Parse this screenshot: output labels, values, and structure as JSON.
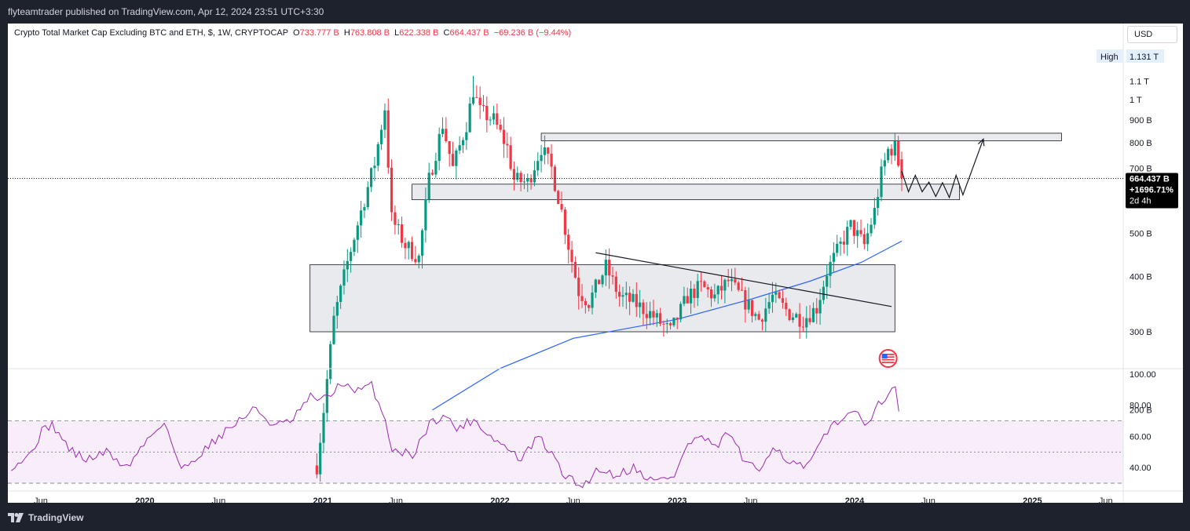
{
  "header": {
    "publisher_line": "flyteamtrader published on TradingView.com, Apr 12, 2024 23:51 UTC+3:30"
  },
  "footer": {
    "brand": "TradingView"
  },
  "legend": {
    "title": "Crypto Total Market Cap Excluding BTC and ETH, $, 1W, CRYPTOCAP",
    "o_label": "O",
    "o_value": "733.777 B",
    "h_label": "H",
    "h_value": "763.808 B",
    "l_label": "L",
    "l_value": "622.338 B",
    "c_label": "C",
    "c_value": "664.437 B",
    "change": "−69.236 B (−9.44%)"
  },
  "price_axis": {
    "currency_button": "USD",
    "high_label": "High",
    "high_value": "1.131 T",
    "current_price": "664.437 B",
    "current_change": "+1696.71%",
    "countdown": "2d 4h"
  },
  "colors": {
    "up": "#089981",
    "down": "#f23645",
    "ma": "#2962ff",
    "rsi": "#9c27b0",
    "zone_fill": "#e9eaee",
    "zone_stroke": "#131722",
    "background": "#ffffff",
    "frame": "#1e222d"
  },
  "chart_data": [
    {
      "type": "candlestick",
      "title": "Crypto Total Market Cap Excluding BTC and ETH, $, 1W, CRYPTOCAP",
      "y_scale": "log",
      "y_unit": "B",
      "y_ticks": [
        {
          "value": 200,
          "label": "200 B"
        },
        {
          "value": 300,
          "label": "300 B"
        },
        {
          "value": 400,
          "label": "400 B"
        },
        {
          "value": 500,
          "label": "500 B"
        },
        {
          "value": 700,
          "label": "700 B"
        },
        {
          "value": 800,
          "label": "800 B"
        },
        {
          "value": 900,
          "label": "900 B"
        },
        {
          "value": 1000,
          "label": "1 T"
        },
        {
          "value": 1100,
          "label": "1.1 T"
        }
      ],
      "x_ticks": [
        {
          "date": "2019-06-01",
          "label": "Jun"
        },
        {
          "date": "2020-01-01",
          "label": "2020"
        },
        {
          "date": "2020-06-01",
          "label": "Jun"
        },
        {
          "date": "2021-01-01",
          "label": "2021"
        },
        {
          "date": "2021-06-01",
          "label": "Jun"
        },
        {
          "date": "2022-01-01",
          "label": "2022"
        },
        {
          "date": "2022-06-01",
          "label": "Jun"
        },
        {
          "date": "2023-01-01",
          "label": "2023"
        },
        {
          "date": "2023-06-01",
          "label": "Jun"
        },
        {
          "date": "2024-01-01",
          "label": "2024"
        },
        {
          "date": "2024-06-01",
          "label": "Jun"
        },
        {
          "date": "2025-01-01",
          "label": "2025"
        },
        {
          "date": "2025-06-01",
          "label": "Jun"
        }
      ],
      "price_path": [
        {
          "date": "2020-12-20",
          "value": 150
        },
        {
          "date": "2021-01-03",
          "value": 200
        },
        {
          "date": "2021-01-24",
          "value": 320
        },
        {
          "date": "2021-02-21",
          "value": 430
        },
        {
          "date": "2021-03-21",
          "value": 560
        },
        {
          "date": "2021-04-18",
          "value": 720
        },
        {
          "date": "2021-05-09",
          "value": 960
        },
        {
          "date": "2021-05-23",
          "value": 540
        },
        {
          "date": "2021-06-20",
          "value": 470
        },
        {
          "date": "2021-07-18",
          "value": 440
        },
        {
          "date": "2021-08-08",
          "value": 660
        },
        {
          "date": "2021-09-05",
          "value": 880
        },
        {
          "date": "2021-09-26",
          "value": 700
        },
        {
          "date": "2021-10-24",
          "value": 880
        },
        {
          "date": "2021-11-07",
          "value": 1050
        },
        {
          "date": "2021-11-21",
          "value": 940
        },
        {
          "date": "2021-12-19",
          "value": 900
        },
        {
          "date": "2022-01-16",
          "value": 780
        },
        {
          "date": "2022-01-30",
          "value": 660
        },
        {
          "date": "2022-02-27",
          "value": 650
        },
        {
          "date": "2022-03-27",
          "value": 780
        },
        {
          "date": "2022-04-17",
          "value": 700
        },
        {
          "date": "2022-05-08",
          "value": 560
        },
        {
          "date": "2022-05-22",
          "value": 470
        },
        {
          "date": "2022-06-12",
          "value": 370
        },
        {
          "date": "2022-07-03",
          "value": 350
        },
        {
          "date": "2022-08-07",
          "value": 420
        },
        {
          "date": "2022-09-04",
          "value": 360
        },
        {
          "date": "2022-10-02",
          "value": 350
        },
        {
          "date": "2022-11-06",
          "value": 330
        },
        {
          "date": "2022-12-18",
          "value": 300
        },
        {
          "date": "2023-01-22",
          "value": 360
        },
        {
          "date": "2023-02-19",
          "value": 380
        },
        {
          "date": "2023-03-19",
          "value": 360
        },
        {
          "date": "2023-04-16",
          "value": 390
        },
        {
          "date": "2023-05-21",
          "value": 350
        },
        {
          "date": "2023-06-18",
          "value": 320
        },
        {
          "date": "2023-07-16",
          "value": 360
        },
        {
          "date": "2023-08-20",
          "value": 330
        },
        {
          "date": "2023-09-17",
          "value": 320
        },
        {
          "date": "2023-10-15",
          "value": 340
        },
        {
          "date": "2023-11-05",
          "value": 410
        },
        {
          "date": "2023-12-03",
          "value": 470
        },
        {
          "date": "2023-12-24",
          "value": 520
        },
        {
          "date": "2024-01-21",
          "value": 470
        },
        {
          "date": "2024-02-11",
          "value": 560
        },
        {
          "date": "2024-02-25",
          "value": 680
        },
        {
          "date": "2024-03-10",
          "value": 770
        },
        {
          "date": "2024-03-24",
          "value": 780
        },
        {
          "date": "2024-04-07",
          "value": 664
        }
      ],
      "moving_average": [
        {
          "date": "2021-08-15",
          "value": 200
        },
        {
          "date": "2022-01-01",
          "value": 248
        },
        {
          "date": "2022-06-01",
          "value": 290
        },
        {
          "date": "2023-01-01",
          "value": 320
        },
        {
          "date": "2023-06-01",
          "value": 355
        },
        {
          "date": "2023-10-01",
          "value": 390
        },
        {
          "date": "2024-01-15",
          "value": 430
        },
        {
          "date": "2024-04-07",
          "value": 480
        }
      ],
      "zones": [
        {
          "from": "2022-03-27",
          "to": "2025-03-02",
          "low": 808,
          "high": 840
        },
        {
          "from": "2021-07-04",
          "to": "2024-08-04",
          "low": 595,
          "high": 645
        },
        {
          "from": "2020-12-06",
          "to": "2024-03-24",
          "low": 300,
          "high": 425
        }
      ],
      "trendline": {
        "from": {
          "date": "2022-07-17",
          "value": 452
        },
        "to": {
          "date": "2024-03-17",
          "value": 342
        }
      },
      "projection_path": [
        {
          "date": "2024-04-07",
          "value": 690
        },
        {
          "date": "2024-04-21",
          "value": 620
        },
        {
          "date": "2024-05-05",
          "value": 675
        },
        {
          "date": "2024-05-19",
          "value": 620
        },
        {
          "date": "2024-06-02",
          "value": 652
        },
        {
          "date": "2024-06-16",
          "value": 605
        },
        {
          "date": "2024-06-30",
          "value": 650
        },
        {
          "date": "2024-07-14",
          "value": 602
        },
        {
          "date": "2024-07-28",
          "value": 675
        },
        {
          "date": "2024-08-11",
          "value": 610
        },
        {
          "date": "2024-09-22",
          "value": 815
        }
      ],
      "last_close": 664.437,
      "all_time_high": 1131
    },
    {
      "type": "line",
      "title": "",
      "ylim": [
        25,
        100
      ],
      "y_ticks": [
        {
          "value": 100,
          "label": "100.00"
        },
        {
          "value": 80,
          "label": "80.00"
        },
        {
          "value": 60,
          "label": "60.00"
        },
        {
          "value": 40,
          "label": "40.00"
        }
      ],
      "band": {
        "low": 30,
        "high": 70
      },
      "rsi_points": [
        {
          "date": "2019-04-01",
          "value": 41
        },
        {
          "date": "2019-05-06",
          "value": 47
        },
        {
          "date": "2019-06-03",
          "value": 63
        },
        {
          "date": "2019-06-24",
          "value": 68
        },
        {
          "date": "2019-07-29",
          "value": 52
        },
        {
          "date": "2019-09-02",
          "value": 45
        },
        {
          "date": "2019-10-14",
          "value": 50
        },
        {
          "date": "2019-11-25",
          "value": 40
        },
        {
          "date": "2020-01-06",
          "value": 58
        },
        {
          "date": "2020-02-10",
          "value": 70
        },
        {
          "date": "2020-03-16",
          "value": 38
        },
        {
          "date": "2020-04-20",
          "value": 48
        },
        {
          "date": "2020-06-01",
          "value": 60
        },
        {
          "date": "2020-07-20",
          "value": 72
        },
        {
          "date": "2020-08-17",
          "value": 78
        },
        {
          "date": "2020-09-21",
          "value": 67
        },
        {
          "date": "2020-10-26",
          "value": 69
        },
        {
          "date": "2020-12-07",
          "value": 85
        },
        {
          "date": "2021-01-11",
          "value": 84
        },
        {
          "date": "2021-02-08",
          "value": 95
        },
        {
          "date": "2021-03-08",
          "value": 88
        },
        {
          "date": "2021-04-12",
          "value": 93
        },
        {
          "date": "2021-05-10",
          "value": 70
        },
        {
          "date": "2021-05-24",
          "value": 52
        },
        {
          "date": "2021-07-05",
          "value": 48
        },
        {
          "date": "2021-08-09",
          "value": 68
        },
        {
          "date": "2021-09-06",
          "value": 74
        },
        {
          "date": "2021-10-04",
          "value": 65
        },
        {
          "date": "2021-11-08",
          "value": 71
        },
        {
          "date": "2021-12-13",
          "value": 60
        },
        {
          "date": "2022-01-17",
          "value": 52
        },
        {
          "date": "2022-02-14",
          "value": 45
        },
        {
          "date": "2022-03-21",
          "value": 60
        },
        {
          "date": "2022-04-25",
          "value": 45
        },
        {
          "date": "2022-05-16",
          "value": 34
        },
        {
          "date": "2022-06-20",
          "value": 28
        },
        {
          "date": "2022-07-25",
          "value": 40
        },
        {
          "date": "2022-08-22",
          "value": 35
        },
        {
          "date": "2022-10-03",
          "value": 40
        },
        {
          "date": "2022-11-14",
          "value": 31
        },
        {
          "date": "2022-12-26",
          "value": 35
        },
        {
          "date": "2023-01-23",
          "value": 55
        },
        {
          "date": "2023-02-20",
          "value": 60
        },
        {
          "date": "2023-03-20",
          "value": 52
        },
        {
          "date": "2023-04-17",
          "value": 63
        },
        {
          "date": "2023-05-22",
          "value": 42
        },
        {
          "date": "2023-06-19",
          "value": 38
        },
        {
          "date": "2023-07-17",
          "value": 55
        },
        {
          "date": "2023-08-21",
          "value": 43
        },
        {
          "date": "2023-09-25",
          "value": 40
        },
        {
          "date": "2023-10-23",
          "value": 55
        },
        {
          "date": "2023-11-20",
          "value": 70
        },
        {
          "date": "2023-12-18",
          "value": 72
        },
        {
          "date": "2024-01-08",
          "value": 78
        },
        {
          "date": "2024-01-29",
          "value": 66
        },
        {
          "date": "2024-02-19",
          "value": 80
        },
        {
          "date": "2024-03-11",
          "value": 88
        },
        {
          "date": "2024-03-25",
          "value": 89
        },
        {
          "date": "2024-04-07",
          "value": 65
        }
      ]
    }
  ]
}
